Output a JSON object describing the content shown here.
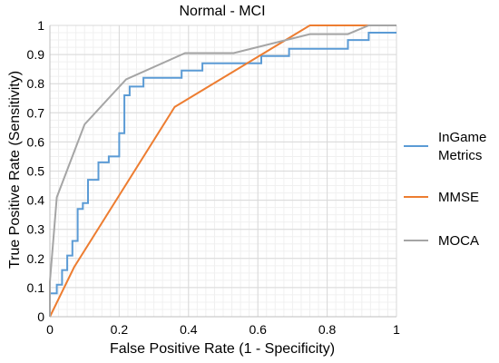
{
  "chart_data": {
    "type": "line",
    "title": "Normal - MCI",
    "xlabel": "False Positive Rate (1 - Specificity)",
    "ylabel": "True Positive Rate (Sensitivity)",
    "xlim": [
      0,
      1
    ],
    "ylim": [
      0,
      1
    ],
    "x_ticks": [
      "0",
      "0.2",
      "0.4",
      "0.6",
      "0.8",
      "1"
    ],
    "y_ticks": [
      "0",
      "0.1",
      "0.2",
      "0.3",
      "0.4",
      "0.5",
      "0.6",
      "0.7",
      "0.8",
      "0.9",
      "1"
    ],
    "grid": true,
    "legend_position": "right",
    "series": [
      {
        "name": "InGame Metrics",
        "color": "#5b9bd5",
        "points": [
          [
            0,
            0
          ],
          [
            0,
            0.08
          ],
          [
            0.02,
            0.08
          ],
          [
            0.02,
            0.11
          ],
          [
            0.035,
            0.11
          ],
          [
            0.035,
            0.16
          ],
          [
            0.05,
            0.16
          ],
          [
            0.05,
            0.21
          ],
          [
            0.065,
            0.21
          ],
          [
            0.065,
            0.26
          ],
          [
            0.08,
            0.26
          ],
          [
            0.08,
            0.37
          ],
          [
            0.095,
            0.37
          ],
          [
            0.095,
            0.39
          ],
          [
            0.11,
            0.39
          ],
          [
            0.11,
            0.47
          ],
          [
            0.14,
            0.47
          ],
          [
            0.14,
            0.53
          ],
          [
            0.17,
            0.53
          ],
          [
            0.17,
            0.55
          ],
          [
            0.2,
            0.55
          ],
          [
            0.2,
            0.63
          ],
          [
            0.215,
            0.63
          ],
          [
            0.215,
            0.76
          ],
          [
            0.23,
            0.76
          ],
          [
            0.23,
            0.79
          ],
          [
            0.27,
            0.79
          ],
          [
            0.27,
            0.82
          ],
          [
            0.38,
            0.82
          ],
          [
            0.38,
            0.845
          ],
          [
            0.44,
            0.845
          ],
          [
            0.44,
            0.87
          ],
          [
            0.61,
            0.87
          ],
          [
            0.61,
            0.895
          ],
          [
            0.69,
            0.895
          ],
          [
            0.69,
            0.92
          ],
          [
            0.86,
            0.92
          ],
          [
            0.86,
            0.95
          ],
          [
            0.92,
            0.95
          ],
          [
            0.92,
            0.975
          ],
          [
            1,
            0.975
          ]
        ]
      },
      {
        "name": "MMSE",
        "color": "#ed7d31",
        "points": [
          [
            0,
            0
          ],
          [
            0.07,
            0.17
          ],
          [
            0.36,
            0.72
          ],
          [
            0.75,
            1
          ],
          [
            1,
            1
          ]
        ]
      },
      {
        "name": "MOCA",
        "color": "#a5a5a5",
        "points": [
          [
            0,
            0
          ],
          [
            0,
            0.12
          ],
          [
            0.02,
            0.41
          ],
          [
            0.1,
            0.66
          ],
          [
            0.22,
            0.815
          ],
          [
            0.39,
            0.905
          ],
          [
            0.53,
            0.905
          ],
          [
            0.75,
            0.97
          ],
          [
            0.86,
            0.97
          ],
          [
            0.92,
            1
          ],
          [
            1,
            1
          ]
        ]
      }
    ]
  }
}
